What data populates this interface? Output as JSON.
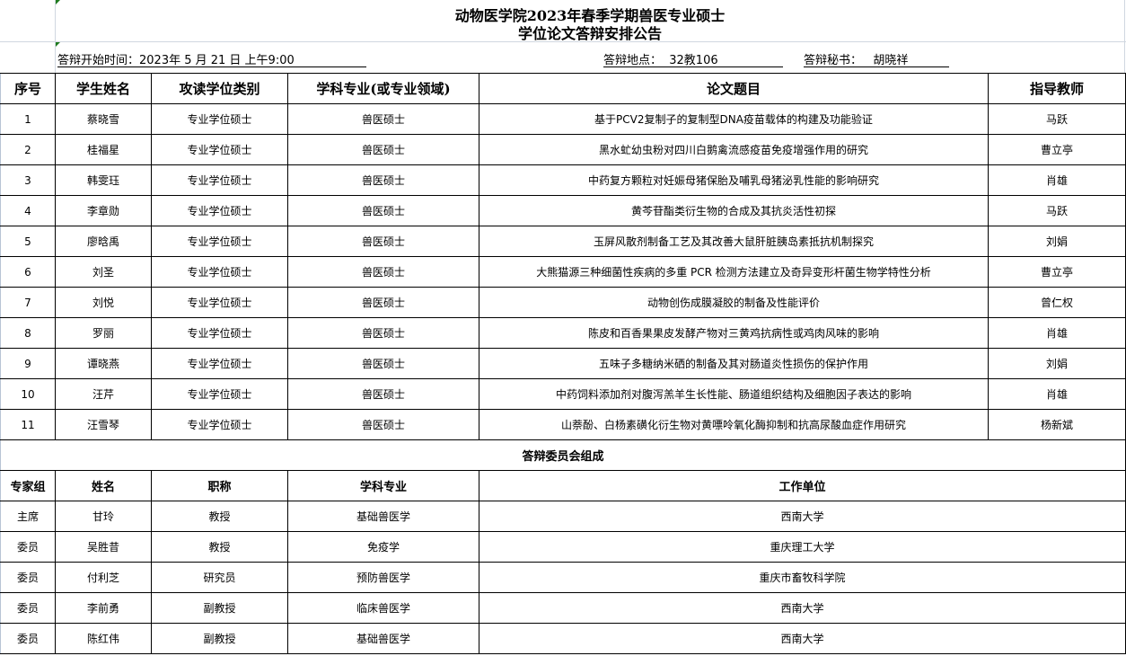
{
  "title": {
    "line1": "动物医学院2023年春季学期兽医专业硕士",
    "line2": "学位论文答辩安排公告"
  },
  "info": {
    "start_time": "答辩开始时间：2023年 5 月 21 日 上午9:00   ",
    "location": "答辩地点：  32教106",
    "secretary": "答辩秘书：   胡晓祥   "
  },
  "schedule": {
    "headers": [
      "序号",
      "学生姓名",
      "攻读学位类别",
      "学科专业(或专业领域)",
      "论文题目",
      "指导教师"
    ],
    "rows": [
      [
        "1",
        "蔡晓雪",
        "专业学位硕士",
        "兽医硕士",
        "基于PCV2复制子的复制型DNA疫苗载体的构建及功能验证",
        "马跃"
      ],
      [
        "2",
        "桂福星",
        "专业学位硕士",
        "兽医硕士",
        "黑水虻幼虫粉对四川白鹅禽流感疫苗免疫增强作用的研究",
        "曹立亭"
      ],
      [
        "3",
        "韩雯珏",
        "专业学位硕士",
        "兽医硕士",
        "中药复方颗粒对妊娠母猪保胎及哺乳母猪泌乳性能的影响研究",
        "肖雄"
      ],
      [
        "4",
        "李章勋",
        "专业学位硕士",
        "兽医硕士",
        "黄芩苷酯类衍生物的合成及其抗炎活性初探",
        "马跃"
      ],
      [
        "5",
        "廖晗禹",
        "专业学位硕士",
        "兽医硕士",
        "玉屏风散剂制备工艺及其改善大鼠肝脏胰岛素抵抗机制探究",
        "刘娟"
      ],
      [
        "6",
        "刘圣",
        "专业学位硕士",
        "兽医硕士",
        "大熊猫源三种细菌性疾病的多重 PCR 检测方法建立及奇异变形杆菌生物学特性分析",
        "曹立亭"
      ],
      [
        "7",
        "刘悦",
        "专业学位硕士",
        "兽医硕士",
        "动物创伤成膜凝胶的制备及性能评价",
        "曾仁权"
      ],
      [
        "8",
        "罗丽",
        "专业学位硕士",
        "兽医硕士",
        "陈皮和百香果果皮发酵产物对三黄鸡抗病性或鸡肉风味的影响",
        "肖雄"
      ],
      [
        "9",
        "谭晓燕",
        "专业学位硕士",
        "兽医硕士",
        "五味子多糖纳米硒的制备及其对肠道炎性损伤的保护作用",
        "刘娟"
      ],
      [
        "10",
        "汪芹",
        "专业学位硕士",
        "兽医硕士",
        "中药饲料添加剂对腹泻羔羊生长性能、肠道组织结构及细胞因子表达的影响",
        "肖雄"
      ],
      [
        "11",
        "汪雪琴",
        "专业学位硕士",
        "兽医硕士",
        "山萘酚、白杨素磺化衍生物对黄嘌呤氧化酶抑制和抗高尿酸血症作用研究",
        "杨新斌"
      ]
    ]
  },
  "committee": {
    "title": "答辩委员会组成",
    "headers": [
      "专家组",
      "姓名",
      "职称",
      "学科专业",
      "工作单位"
    ],
    "rows": [
      [
        "主席",
        "甘玲",
        "教授",
        "基础兽医学",
        "西南大学"
      ],
      [
        "委员",
        "吴胜昔",
        "教授",
        "免疫学",
        "重庆理工大学"
      ],
      [
        "委员",
        "付利芝",
        "研究员",
        "预防兽医学",
        "重庆市畜牧科学院"
      ],
      [
        "委员",
        "李前勇",
        "副教授",
        "临床兽医学",
        "西南大学"
      ],
      [
        "委员",
        "陈红伟",
        "副教授",
        "基础兽医学",
        "西南大学"
      ]
    ]
  }
}
